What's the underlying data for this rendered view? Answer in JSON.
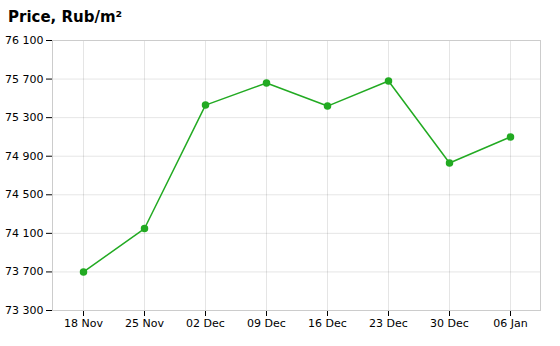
{
  "chart_data": {
    "type": "line",
    "title": "Price, Rub/m²",
    "categories": [
      "18 Nov",
      "25 Nov",
      "02 Dec",
      "09 Dec",
      "16 Dec",
      "23 Dec",
      "30 Dec",
      "06 Jan"
    ],
    "values": [
      73700,
      74150,
      75430,
      75660,
      75420,
      75680,
      74830,
      75100
    ],
    "color": "#22aa22",
    "marker": "circle",
    "ylim": [
      73300,
      76100
    ],
    "yticks": [
      {
        "value": 73300,
        "label": "73 300"
      },
      {
        "value": 73700,
        "label": "73 700"
      },
      {
        "value": 74100,
        "label": "74 100"
      },
      {
        "value": 74500,
        "label": "74 500"
      },
      {
        "value": 74900,
        "label": "74 900"
      },
      {
        "value": 75300,
        "label": "75 300"
      },
      {
        "value": 75700,
        "label": "75 700"
      },
      {
        "value": 76100,
        "label": "76 100"
      }
    ],
    "grid": true
  }
}
